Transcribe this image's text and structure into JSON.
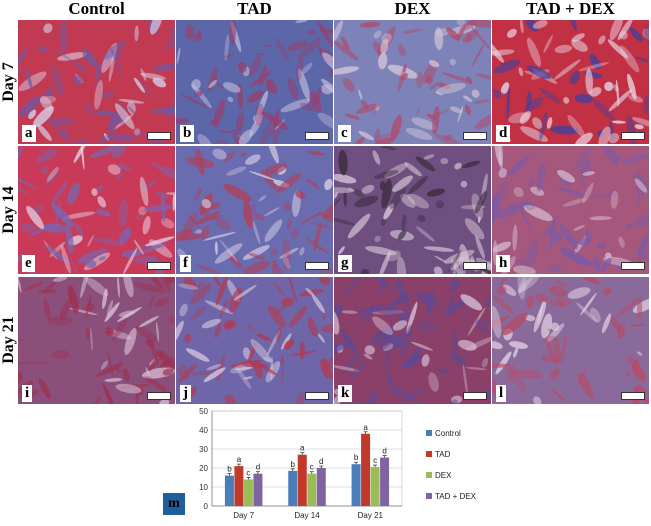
{
  "columns": [
    "Control",
    "TAD",
    "DEX",
    "TAD + DEX"
  ],
  "rows": [
    "Day 7",
    "Day 14",
    "Day 21"
  ],
  "panels": [
    {
      "letter": "a",
      "base": "#c23a52",
      "accent": "#d8d0e8",
      "fiber": "#6b5aa8"
    },
    {
      "letter": "b",
      "base": "#5b67a8",
      "accent": "#c7bfe0",
      "fiber": "#9b3d6a"
    },
    {
      "letter": "c",
      "base": "#7d82b8",
      "accent": "#d9c9d9",
      "fiber": "#b04a6a"
    },
    {
      "letter": "d",
      "base": "#c23044",
      "accent": "#3b42a0",
      "fiber": "#e8d8e8"
    },
    {
      "letter": "e",
      "base": "#c83a58",
      "accent": "#e7d7e7",
      "fiber": "#7a66b0"
    },
    {
      "letter": "f",
      "base": "#6a6cb0",
      "accent": "#d8cfe6",
      "fiber": "#b0405a"
    },
    {
      "letter": "g",
      "base": "#6e4f80",
      "accent": "#3a2a3a",
      "fiber": "#d8c8d8"
    },
    {
      "letter": "h",
      "base": "#a6587c",
      "accent": "#d8c3d8",
      "fiber": "#7a5aa8"
    },
    {
      "letter": "i",
      "base": "#8a4f7a",
      "accent": "#dcc8dc",
      "fiber": "#a03050"
    },
    {
      "letter": "j",
      "base": "#6e66a8",
      "accent": "#d6c6e0",
      "fiber": "#b23a52"
    },
    {
      "letter": "k",
      "base": "#8a4068",
      "accent": "#d8c0d6",
      "fiber": "#5a4a9a"
    },
    {
      "letter": "l",
      "base": "#8a6a9a",
      "accent": "#e0d0e2",
      "fiber": "#b84a68"
    }
  ],
  "figure_label": "m",
  "chart_data": {
    "type": "bar",
    "categories": [
      "Day 7",
      "Day 14",
      "Day 21"
    ],
    "ylim": [
      0,
      50
    ],
    "yticks": [
      0,
      10,
      20,
      30,
      40,
      50
    ],
    "grid": true,
    "legend_position": "right",
    "series": [
      {
        "name": "Control",
        "color": "#4a7ebb",
        "values": [
          16,
          18.5,
          22
        ],
        "letters": [
          "b",
          "b",
          "b"
        ]
      },
      {
        "name": "TAD",
        "color": "#c0392b",
        "values": [
          21,
          27,
          38
        ],
        "letters": [
          "a",
          "a",
          "a"
        ]
      },
      {
        "name": "DEX",
        "color": "#9bbb59",
        "values": [
          14,
          17,
          20.5
        ],
        "letters": [
          "c",
          "c",
          "c"
        ]
      },
      {
        "name": "TAD + DEX",
        "color": "#8064a2",
        "values": [
          17,
          20,
          25.5
        ],
        "letters": [
          "d",
          "d",
          "d"
        ]
      }
    ]
  }
}
